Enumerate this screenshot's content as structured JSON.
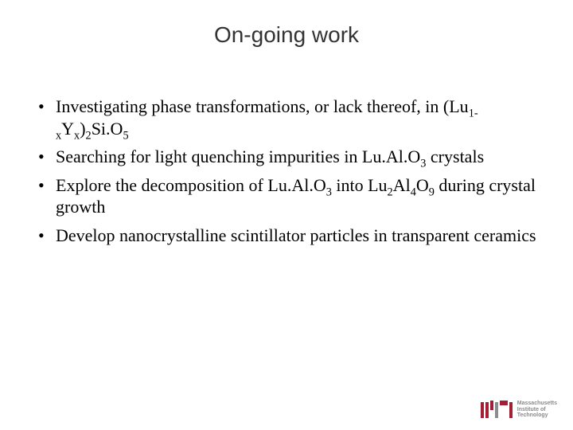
{
  "title": "On-going work",
  "title_color": "#333333",
  "title_fontsize": 28,
  "body_fontsize": 22,
  "bullets": [
    {
      "pre": "Investigating phase transformations, or lack thereof, in (Lu",
      "sub1": "1-x",
      "mid1": "Y",
      "sub2": "x",
      "mid2": ")",
      "sub3": "2",
      "mid3": "Si.O",
      "sub4": "5",
      "post": ""
    },
    {
      "pre": "Searching for light quenching impurities in Lu.Al.O",
      "sub1": "3",
      "mid1": " crystals",
      "sub2": "",
      "mid2": "",
      "sub3": "",
      "mid3": "",
      "sub4": "",
      "post": ""
    },
    {
      "pre": "Explore the decomposition of Lu.Al.O",
      "sub1": "3",
      "mid1": " into Lu",
      "sub2": "2",
      "mid2": "Al",
      "sub3": "4",
      "mid3": "O",
      "sub4": "9",
      "post": " during crystal growth"
    },
    {
      "pre": "Develop nanocrystalline scintillator particles in transparent ceramics",
      "sub1": "",
      "mid1": "",
      "sub2": "",
      "mid2": "",
      "sub3": "",
      "mid3": "",
      "sub4": "",
      "post": ""
    }
  ],
  "logo": {
    "brand_color": "#a31f34",
    "grey_color": "#8a8b8c",
    "line1": "Massachusetts",
    "line2": "Institute of",
    "line3": "Technology"
  }
}
